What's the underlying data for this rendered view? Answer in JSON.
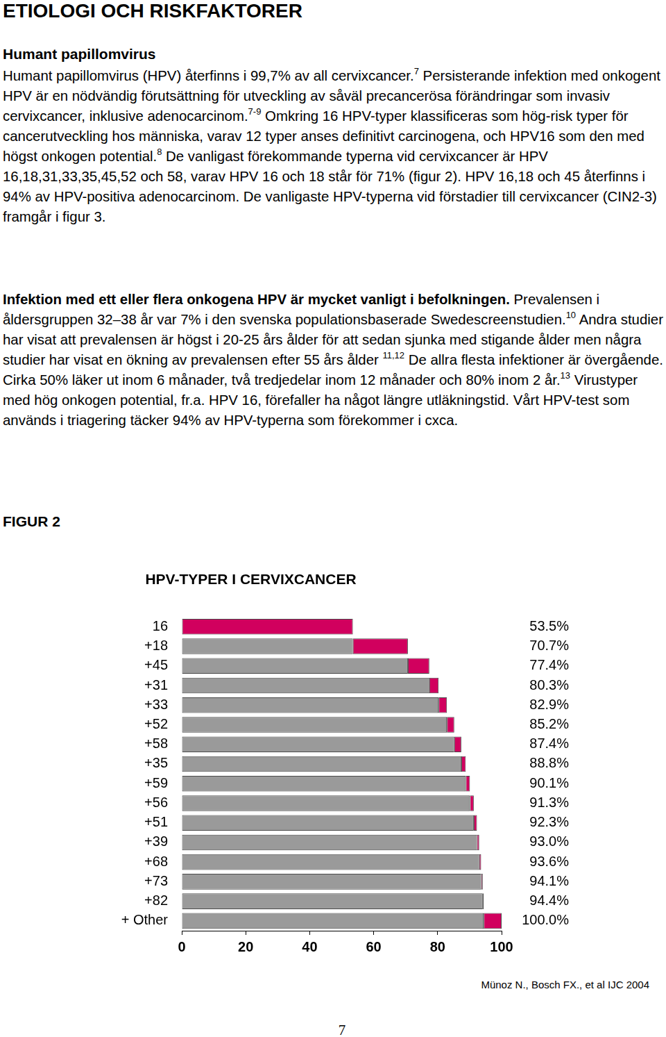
{
  "heading": "ETIOLOGI OCH RISKFAKTORER",
  "subheading": "Humant papillomvirus",
  "paragraphs": [
    [
      {
        "text": "Humant papillomvirus (HPV) återfinns i 99,7% av all cervixcancer.",
        "style": "normal"
      },
      {
        "text": "7",
        "style": "sup"
      },
      {
        "text": " Persisterande infektion med onkogent HPV är en nödvändig förutsättning för utveckling av såväl precancerösa förändringar som invasiv cervixcancer, inklusive adenocarcinom.",
        "style": "normal"
      },
      {
        "text": "7-9",
        "style": "sup"
      },
      {
        "text": " Omkring 16 HPV-typer klassificeras som hög-risk typer för cancerutveckling hos människa, varav 12 typer anses definitivt carcinogena, och HPV16 som den med högst onkogen potential.",
        "style": "normal"
      },
      {
        "text": "8",
        "style": "sup"
      },
      {
        "text": " De vanligast förekommande typerna vid cervixcancer är HPV 16,18,31,33,35,45,52 och 58, varav HPV 16 och 18 står för 71% (figur 2). HPV 16,18 och 45 återfinns i 94% av HPV-positiva adenocarcinom. De vanligaste HPV-typerna vid förstadier till cervixcancer (CIN2-3) framgår i figur 3.",
        "style": "normal"
      }
    ],
    [
      {
        "text": "Infektion med ett eller flera onkogena HPV är mycket vanligt i befolkningen.",
        "style": "bold"
      },
      {
        "text": " Prevalensen i åldersgruppen 32–38 år var 7% i den svenska populationsbaserade Swedescreenstudien.",
        "style": "normal"
      },
      {
        "text": "10",
        "style": "sup"
      },
      {
        "text": " Andra studier har visat att prevalensen är högst i 20-25 års ålder för att sedan sjunka med stigande ålder men några studier har visat en ökning av prevalensen efter 55 års ålder ",
        "style": "normal"
      },
      {
        "text": "11,12",
        "style": "sup"
      },
      {
        "text": " De allra flesta infektioner är övergående. Cirka 50% läker ut inom 6 månader, två tredjedelar inom 12 månader och 80% inom 2 år.",
        "style": "normal"
      },
      {
        "text": "13",
        "style": "sup"
      },
      {
        "text": " Virustyper med hög onkogen potential, fr.a. HPV 16, förefaller ha något längre utläkningstid. Vårt HPV-test som används i triagering täcker 94% av HPV-typerna som förekommer i cxca.",
        "style": "normal"
      }
    ]
  ],
  "figure_label": "FIGUR 2",
  "chart_data": {
    "type": "bar",
    "title": "HPV-TYPER I CERVIXCANCER",
    "orientation": "horizontal",
    "categories": [
      "16",
      "+18",
      "+45",
      "+31",
      "+33",
      "+52",
      "+58",
      "+35",
      "+59",
      "+56",
      "+51",
      "+39",
      "+68",
      "+73",
      "+82",
      "+ Other"
    ],
    "values": [
      53.5,
      70.7,
      77.4,
      80.3,
      82.9,
      85.2,
      87.4,
      88.8,
      90.1,
      91.3,
      92.3,
      93.0,
      93.6,
      94.1,
      94.4,
      100.0
    ],
    "value_labels": [
      "53.5%",
      "70.7%",
      "77.4%",
      "80.3%",
      "82.9%",
      "85.2%",
      "87.4%",
      "88.8%",
      "90.1%",
      "91.3%",
      "92.3%",
      "93.0%",
      "93.6%",
      "94.1%",
      "94.4%",
      "100.0%"
    ],
    "data_labels": true,
    "color": "#d1005e",
    "xlim": [
      0,
      100
    ],
    "xticks": [
      0,
      20,
      40,
      60,
      80,
      100
    ],
    "grid": false
  },
  "source": "Münoz N., Bosch FX., et al IJC 2004",
  "page_number": "7"
}
